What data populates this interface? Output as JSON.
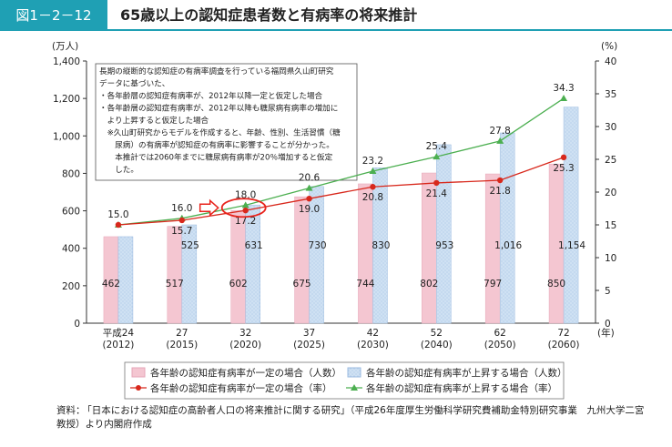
{
  "header": {
    "figure_label": "図1－2－12",
    "title": "65歳以上の認知症患者数と有病率の将来推計"
  },
  "colors": {
    "accent": "#1fa0b4",
    "bar_constant": "#f4c6d1",
    "bar_rising": "#cfe1f3",
    "line_constant": "#d8281c",
    "line_rising": "#4caf50",
    "highlight": "#e8231c"
  },
  "chart_data": {
    "type": "bar",
    "categories": [
      "平成24\n(2012)",
      "27\n(2015)",
      "32\n(2020)",
      "37\n(2025)",
      "42\n(2030)",
      "52\n(2040)",
      "62\n(2050)",
      "72\n(2060)"
    ],
    "x_unit": "(年)",
    "y_left": {
      "unit": "(万人)",
      "ylim": [
        0,
        1400
      ],
      "ticks": [
        "0",
        "200",
        "400",
        "600",
        "800",
        "1,000",
        "1,200",
        "1,400"
      ]
    },
    "y_right": {
      "unit": "(%)",
      "ylim": [
        0,
        40
      ],
      "ticks": [
        "0",
        "5",
        "10",
        "15",
        "20",
        "25",
        "30",
        "35",
        "40"
      ]
    },
    "series": [
      {
        "name": "各年齢の認知症有病率が一定の場合（人数）",
        "kind": "bar",
        "axis": "left",
        "values": [
          462,
          517,
          602,
          675,
          744,
          802,
          797,
          850
        ],
        "labels": [
          "462",
          "517",
          "602",
          "675",
          "744",
          "802",
          "797",
          "850"
        ]
      },
      {
        "name": "各年齢の認知症有病率が上昇する場合（人数）",
        "kind": "bar",
        "axis": "left",
        "values": [
          462,
          525,
          631,
          730,
          830,
          953,
          1016,
          1154
        ],
        "labels": [
          "",
          "525",
          "631",
          "730",
          "830",
          "953",
          "1,016",
          "1,154"
        ]
      },
      {
        "name": "各年齢の認知症有病率が一定の場合（率）",
        "kind": "line",
        "axis": "right",
        "values": [
          15.0,
          15.7,
          17.2,
          19.0,
          20.8,
          21.4,
          21.8,
          25.3
        ],
        "labels": [
          "15.0",
          "15.7",
          "17.2",
          "19.0",
          "20.8",
          "21.4",
          "21.8",
          "25.3"
        ]
      },
      {
        "name": "各年齢の認知症有病率が上昇する場合（率）",
        "kind": "line",
        "axis": "right",
        "values": [
          15.0,
          16.0,
          18.0,
          20.6,
          23.2,
          25.4,
          27.8,
          34.3
        ],
        "labels": [
          "",
          "16.0",
          "18.0",
          "20.6",
          "23.2",
          "25.4",
          "27.8",
          "34.3"
        ]
      }
    ],
    "annotation": [
      "長期の縦断的な認知症の有病率調査を行っている福岡県久山町研究",
      "データに基づいた、",
      "・各年齢層の認知症有病率が、2012年以降一定と仮定した場合",
      "・各年齢層の認知症有病率が、2012年以降も糖尿病有病率の増加に",
      "　より上昇すると仮定した場合",
      "　※久山町研究からモデルを作成すると、年齢、性別、生活習慣（糖",
      "　　尿病）の有病率が認知症の有病率に影響することが分かった。",
      "　　本推計では2060年までに糖尿病有病率が20％増加すると仮定",
      "　　した。"
    ],
    "highlight": {
      "category": "32\n(2020)",
      "shape": "ellipse-with-arrow"
    },
    "grid": false,
    "legend_position": "bottom"
  },
  "source": {
    "label": "資料：",
    "text": "「日本における認知症の高齢者人口の将来推計に関する研究」（平成26年度厚生労働科学研究費補助金特別研究事業　九州大学二宮教授）より内閣府作成"
  }
}
